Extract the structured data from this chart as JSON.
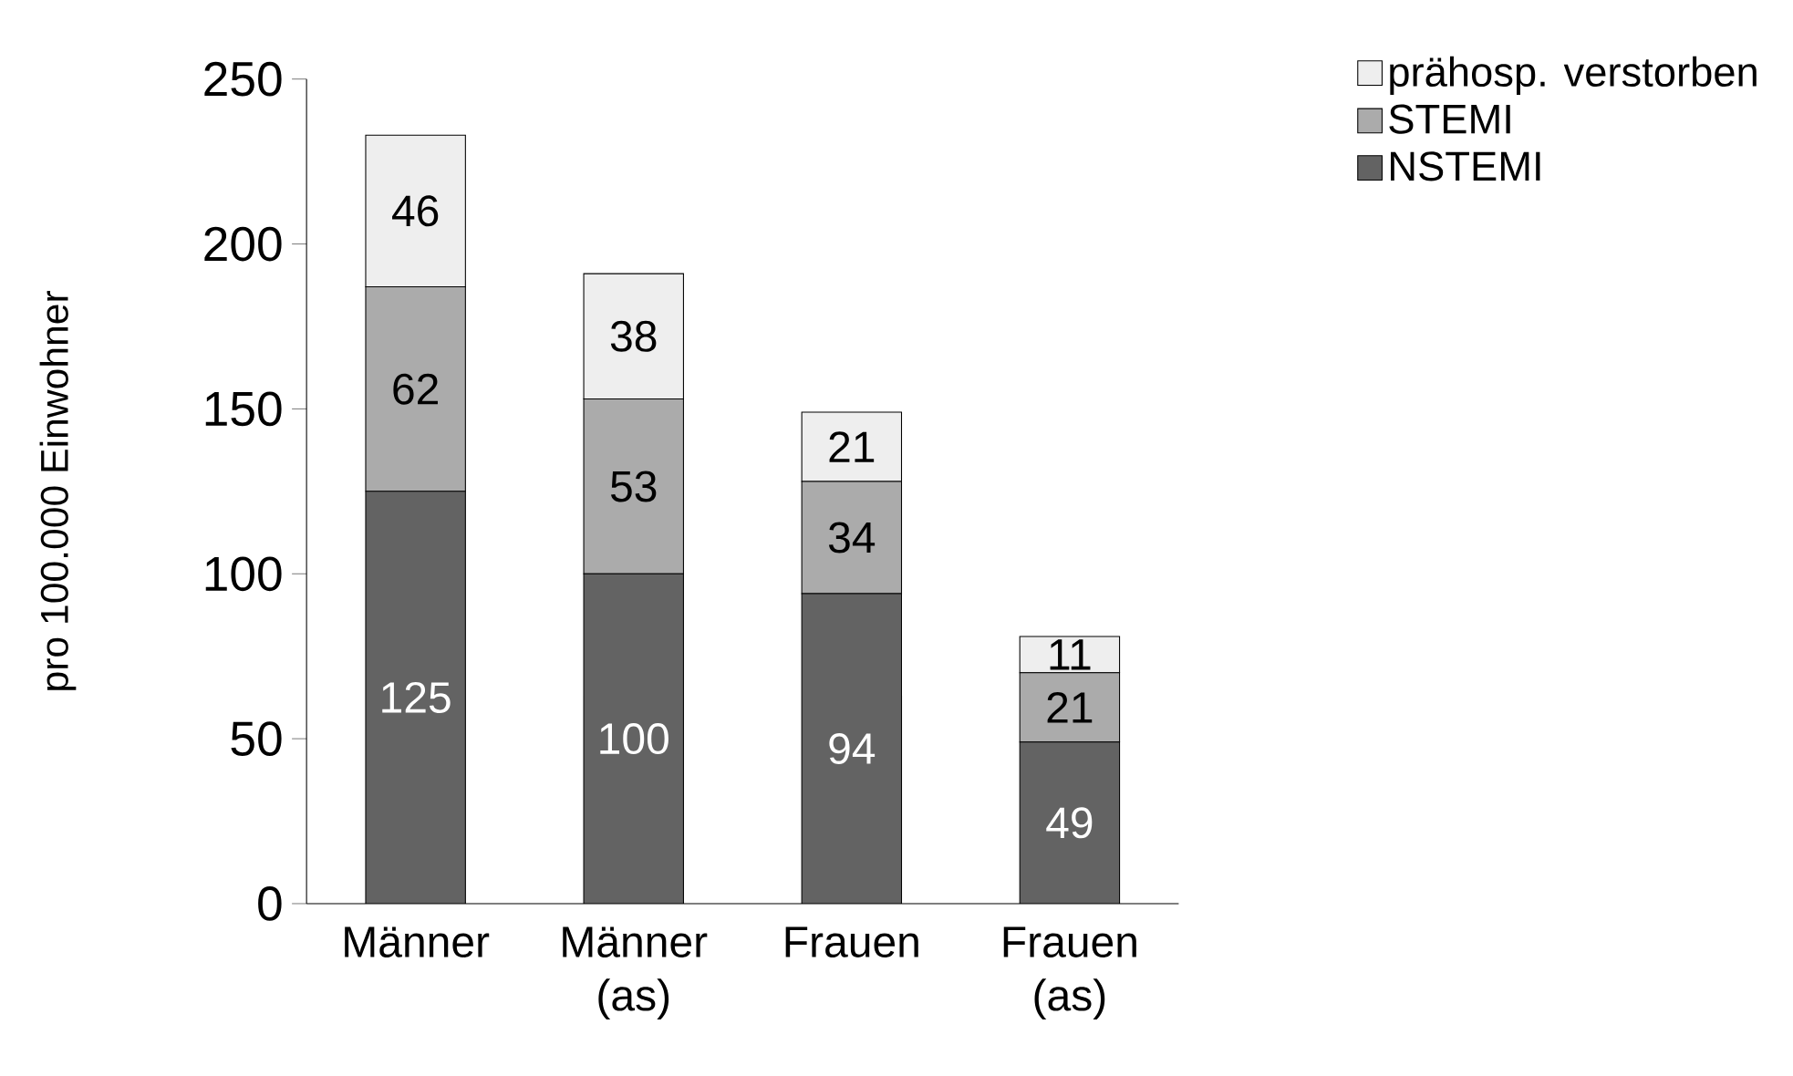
{
  "chart_data": {
    "type": "bar",
    "stacked": true,
    "ylabel": "pro 100.000 Einwohner",
    "categories": [
      "Männer",
      "Männer (as)",
      "Frauen",
      "Frauen (as)"
    ],
    "series": [
      {
        "name": "NSTEMI",
        "color": "#636363",
        "values": [
          125,
          100,
          94,
          49
        ]
      },
      {
        "name": "STEMI",
        "color": "#ababab",
        "values": [
          62,
          53,
          34,
          21
        ]
      },
      {
        "name": "prähosp. verstorben",
        "color": "#eeeeee",
        "values": [
          46,
          38,
          21,
          11
        ]
      }
    ],
    "ylim": [
      0,
      250
    ],
    "yticks": [
      0,
      50,
      100,
      150,
      200,
      250
    ],
    "data_labels": true,
    "legend": "top right",
    "grid": false
  }
}
